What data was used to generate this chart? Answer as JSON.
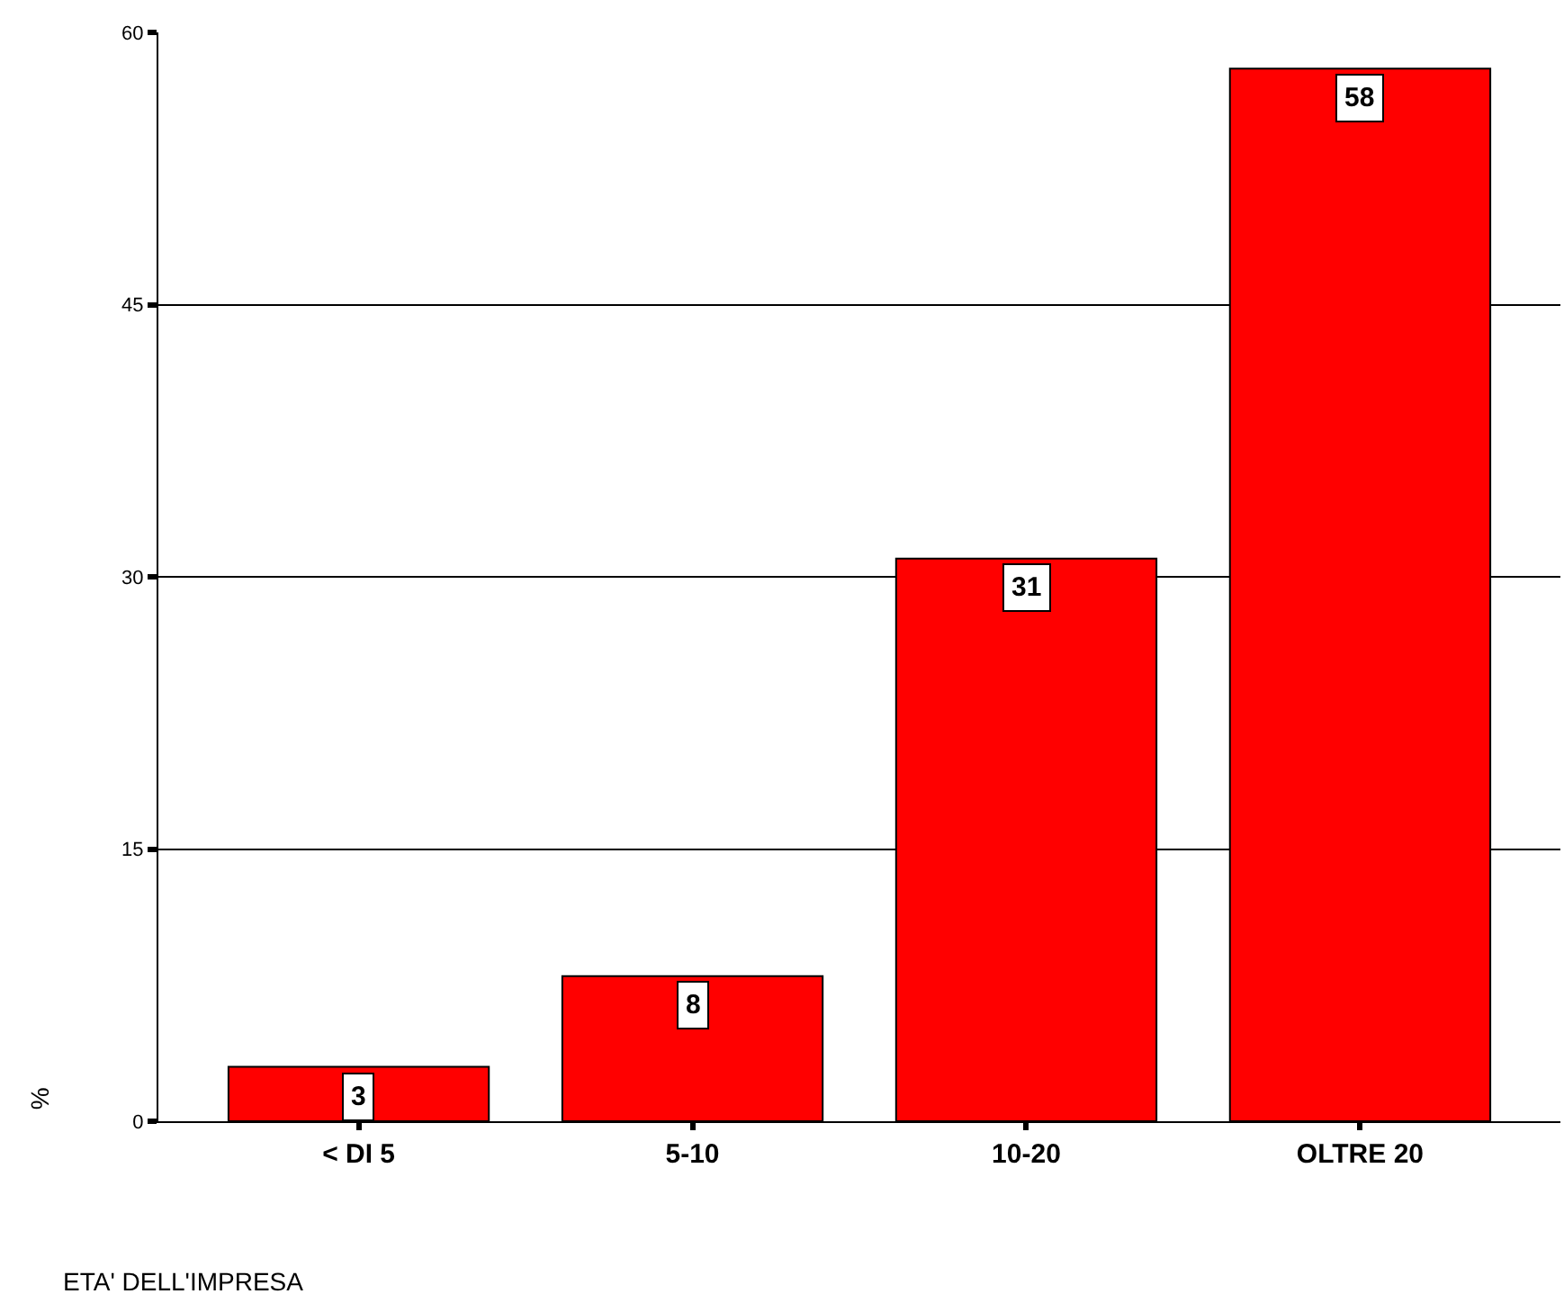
{
  "chart_data": {
    "type": "bar",
    "xlabel": "ETA' DELL'IMPRESA",
    "ylabel": "%",
    "categories": [
      "< DI 5",
      "5-10",
      "10-20",
      "OLTRE 20"
    ],
    "values": [
      3,
      8,
      31,
      58
    ],
    "color": "#ff0000",
    "ylim": [
      0,
      60
    ],
    "yticks": [
      0,
      15,
      30,
      45,
      60
    ],
    "grid": "y",
    "data_labels": true
  }
}
